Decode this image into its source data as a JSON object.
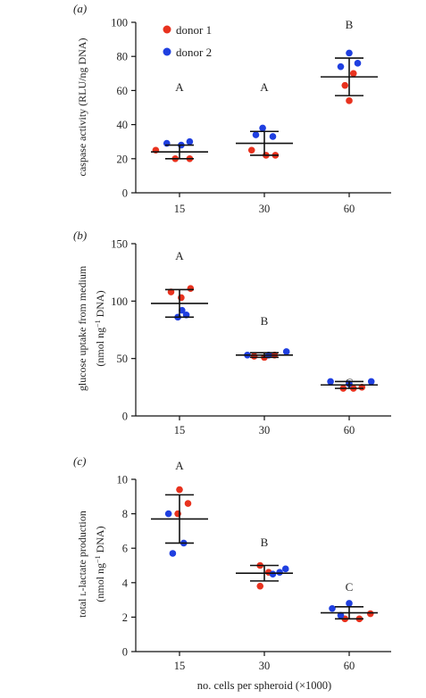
{
  "colors": {
    "donor1": "#e8321e",
    "donor2": "#1f3fe0",
    "axis": "#111111",
    "stats": "#111111"
  },
  "legend": [
    {
      "key": "donor1",
      "label": "donor 1"
    },
    {
      "key": "donor2",
      "label": "donor 2"
    }
  ],
  "chart_data": [
    {
      "type": "scatter",
      "panel_label": "(a)",
      "ylabel": "caspase activity (RLU/ng DNA)",
      "categories": [
        "15",
        "30",
        "60"
      ],
      "ylim": [
        0,
        100
      ],
      "yticks": [
        0,
        20,
        40,
        60,
        80,
        100
      ],
      "group_letters": [
        "A",
        "A",
        "B"
      ],
      "stats": [
        {
          "mean": 24,
          "sd_low": 20,
          "sd_high": 28
        },
        {
          "mean": 29,
          "sd_low": 22,
          "sd_high": 36
        },
        {
          "mean": 68,
          "sd_low": 57,
          "sd_high": 79
        }
      ],
      "series": [
        {
          "name": "donor 1",
          "points": [
            [
              0,
              -0.28,
              25
            ],
            [
              0,
              -0.05,
              20
            ],
            [
              0,
              0.12,
              20
            ],
            [
              1,
              -0.15,
              25
            ],
            [
              1,
              0.02,
              22
            ],
            [
              1,
              0.13,
              22
            ],
            [
              2,
              -0.05,
              63
            ],
            [
              2,
              0.0,
              54
            ],
            [
              2,
              0.05,
              70
            ]
          ]
        },
        {
          "name": "donor 2",
          "points": [
            [
              0,
              -0.15,
              29
            ],
            [
              0,
              0.02,
              28
            ],
            [
              0,
              0.12,
              30
            ],
            [
              1,
              -0.1,
              34
            ],
            [
              1,
              -0.02,
              38
            ],
            [
              1,
              0.1,
              33
            ],
            [
              2,
              -0.1,
              74
            ],
            [
              2,
              0.0,
              82
            ],
            [
              2,
              0.1,
              76
            ]
          ]
        }
      ]
    },
    {
      "type": "scatter",
      "panel_label": "(b)",
      "ylabel_line1": "glucose uptake from medium",
      "ylabel_line2_pre": "(nmol ng",
      "ylabel_line2_sup": "−1",
      "ylabel_line2_post": " DNA)",
      "categories": [
        "15",
        "30",
        "60"
      ],
      "ylim": [
        0,
        150
      ],
      "yticks": [
        0,
        50,
        100,
        150
      ],
      "group_letters": [
        "A",
        "B",
        "C"
      ],
      "stats": [
        {
          "mean": 98,
          "sd_low": 86,
          "sd_high": 110
        },
        {
          "mean": 53,
          "sd_low": 51,
          "sd_high": 55
        },
        {
          "mean": 27,
          "sd_low": 24,
          "sd_high": 30
        }
      ],
      "series": [
        {
          "name": "donor 1",
          "points": [
            [
              0,
              -0.1,
              108
            ],
            [
              0,
              0.02,
              103
            ],
            [
              0,
              0.13,
              111
            ],
            [
              1,
              -0.12,
              52
            ],
            [
              1,
              0.0,
              51
            ],
            [
              1,
              0.12,
              53
            ],
            [
              2,
              -0.07,
              24
            ],
            [
              2,
              0.05,
              24
            ],
            [
              2,
              0.15,
              25
            ]
          ]
        },
        {
          "name": "donor 2",
          "points": [
            [
              0,
              -0.02,
              86
            ],
            [
              0,
              0.08,
              88
            ],
            [
              0,
              0.03,
              92
            ],
            [
              1,
              -0.2,
              53
            ],
            [
              1,
              0.26,
              56
            ],
            [
              1,
              0.05,
              53
            ],
            [
              2,
              -0.22,
              30
            ],
            [
              2,
              0.0,
              28
            ],
            [
              2,
              0.26,
              30
            ]
          ]
        }
      ]
    },
    {
      "type": "scatter",
      "panel_label": "(c)",
      "ylabel_line1": "total ʟ-lactate production",
      "ylabel_line2_pre": "(nmol ng",
      "ylabel_line2_sup": "−1",
      "ylabel_line2_post": " DNA)",
      "xlabel": "no. cells per spheroid (×1000)",
      "categories": [
        "15",
        "30",
        "60"
      ],
      "ylim": [
        0,
        10
      ],
      "yticks": [
        0,
        2,
        4,
        6,
        8,
        10
      ],
      "group_letters": [
        "A",
        "B",
        "C"
      ],
      "stats": [
        {
          "mean": 7.7,
          "sd_low": 6.3,
          "sd_high": 9.1
        },
        {
          "mean": 4.55,
          "sd_low": 4.1,
          "sd_high": 5.0
        },
        {
          "mean": 2.25,
          "sd_low": 1.9,
          "sd_high": 2.6
        }
      ],
      "series": [
        {
          "name": "donor 1",
          "points": [
            [
              0,
              0.0,
              9.4
            ],
            [
              0,
              0.1,
              8.6
            ],
            [
              0,
              -0.02,
              8.0
            ],
            [
              1,
              -0.05,
              5.0
            ],
            [
              1,
              -0.05,
              3.8
            ],
            [
              1,
              0.05,
              4.6
            ],
            [
              2,
              -0.05,
              1.9
            ],
            [
              2,
              0.12,
              1.9
            ],
            [
              2,
              0.25,
              2.2
            ]
          ]
        },
        {
          "name": "donor 2",
          "points": [
            [
              0,
              -0.13,
              8.0
            ],
            [
              0,
              0.05,
              6.3
            ],
            [
              0,
              -0.08,
              5.7
            ],
            [
              1,
              0.1,
              4.5
            ],
            [
              1,
              0.25,
              4.8
            ],
            [
              1,
              0.18,
              4.6
            ],
            [
              2,
              -0.2,
              2.5
            ],
            [
              2,
              -0.1,
              2.1
            ],
            [
              2,
              0.0,
              2.8
            ]
          ]
        }
      ]
    }
  ]
}
